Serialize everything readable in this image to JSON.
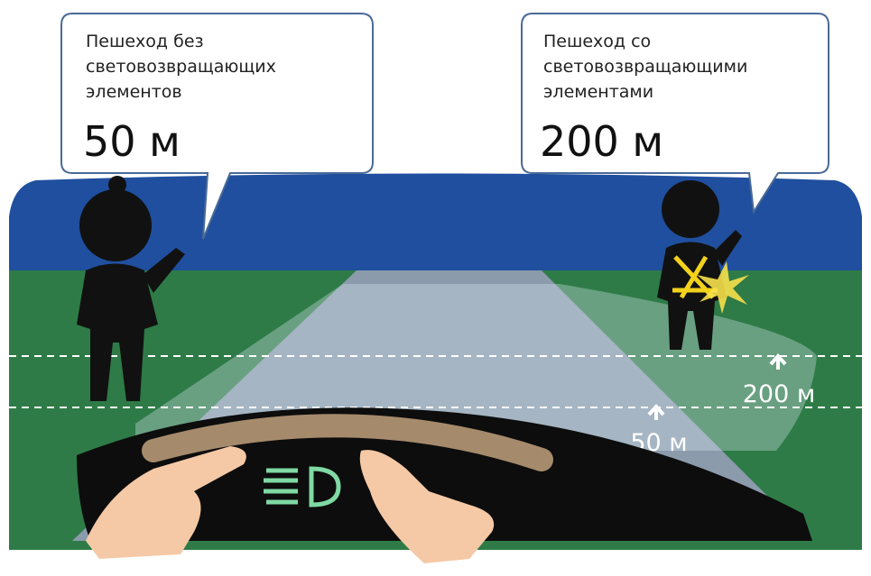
{
  "callouts": [
    {
      "lines": [
        "Пешеход без",
        "световозвращающих",
        "элементов"
      ],
      "distance": "50 м"
    },
    {
      "lines": [
        "Пешеход со",
        "световозвращающими",
        "элементами"
      ],
      "distance": "200 м"
    }
  ],
  "markers": [
    "50 м",
    "200 м"
  ]
}
